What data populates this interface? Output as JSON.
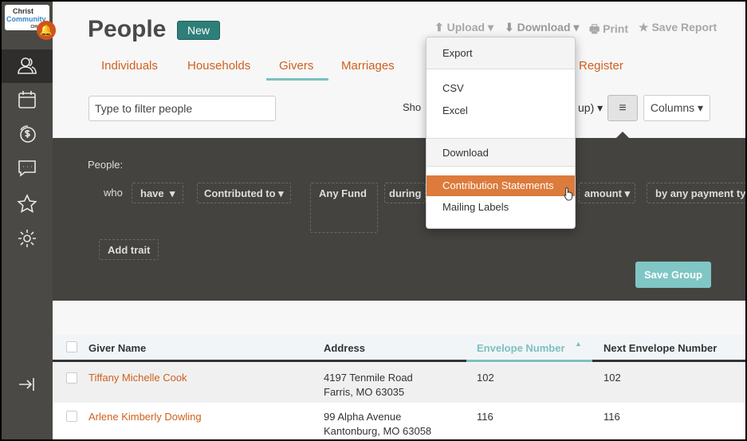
{
  "logo": {
    "line1": "Christ",
    "line2": "Community",
    "line3": "CHURCH"
  },
  "sidebar": {
    "items": [
      {
        "icon": "people-icon",
        "active": true
      },
      {
        "icon": "calendar-icon"
      },
      {
        "icon": "giving-icon"
      },
      {
        "icon": "chat-icon"
      },
      {
        "icon": "star-icon"
      },
      {
        "icon": "gear-icon"
      }
    ],
    "collapse_icon": "collapse-icon"
  },
  "header": {
    "title": "People",
    "new_label": "New",
    "upload": "Upload",
    "download": "Download",
    "print": "Print",
    "save_report": "Save Report"
  },
  "tabs": [
    {
      "label": "Individuals"
    },
    {
      "label": "Households"
    },
    {
      "label": "Givers",
      "active": true
    },
    {
      "label": "Marriages"
    },
    {
      "label": "Register"
    }
  ],
  "filter": {
    "placeholder": "Type to filter people",
    "show_label": "Sho",
    "show_value": "up)",
    "columns_label": "Columns"
  },
  "query": {
    "people_label": "People:",
    "who": "who",
    "have": "have",
    "contributed": "Contributed to",
    "fund": "Any Fund",
    "during": "during",
    "amount": "amount",
    "payment": "by any payment typ",
    "add_trait": "Add trait",
    "save_group": "Save Group"
  },
  "table": {
    "headers": [
      "Giver Name",
      "Address",
      "Envelope Number",
      "Next Envelope Number"
    ],
    "sorted_column": "Envelope Number",
    "sort": "ascending",
    "rows": [
      {
        "name": "Tiffany Michelle Cook",
        "address1": "4197 Tenmile Road",
        "address2": "Farris, MO  63035",
        "envelope": "102",
        "next": "102"
      },
      {
        "name": "Arlene Kimberly Dowling",
        "address1": "99 Alpha Avenue",
        "address2": "Kantonburg, MO  63058",
        "envelope": "116",
        "next": "116"
      }
    ]
  },
  "dropdown": {
    "export_header": "Export",
    "csv": "CSV",
    "excel": "Excel",
    "download_header": "Download",
    "contribution": "Contribution Statements",
    "mailing": "Mailing Labels",
    "highlight_color": "#dc7b3c"
  }
}
